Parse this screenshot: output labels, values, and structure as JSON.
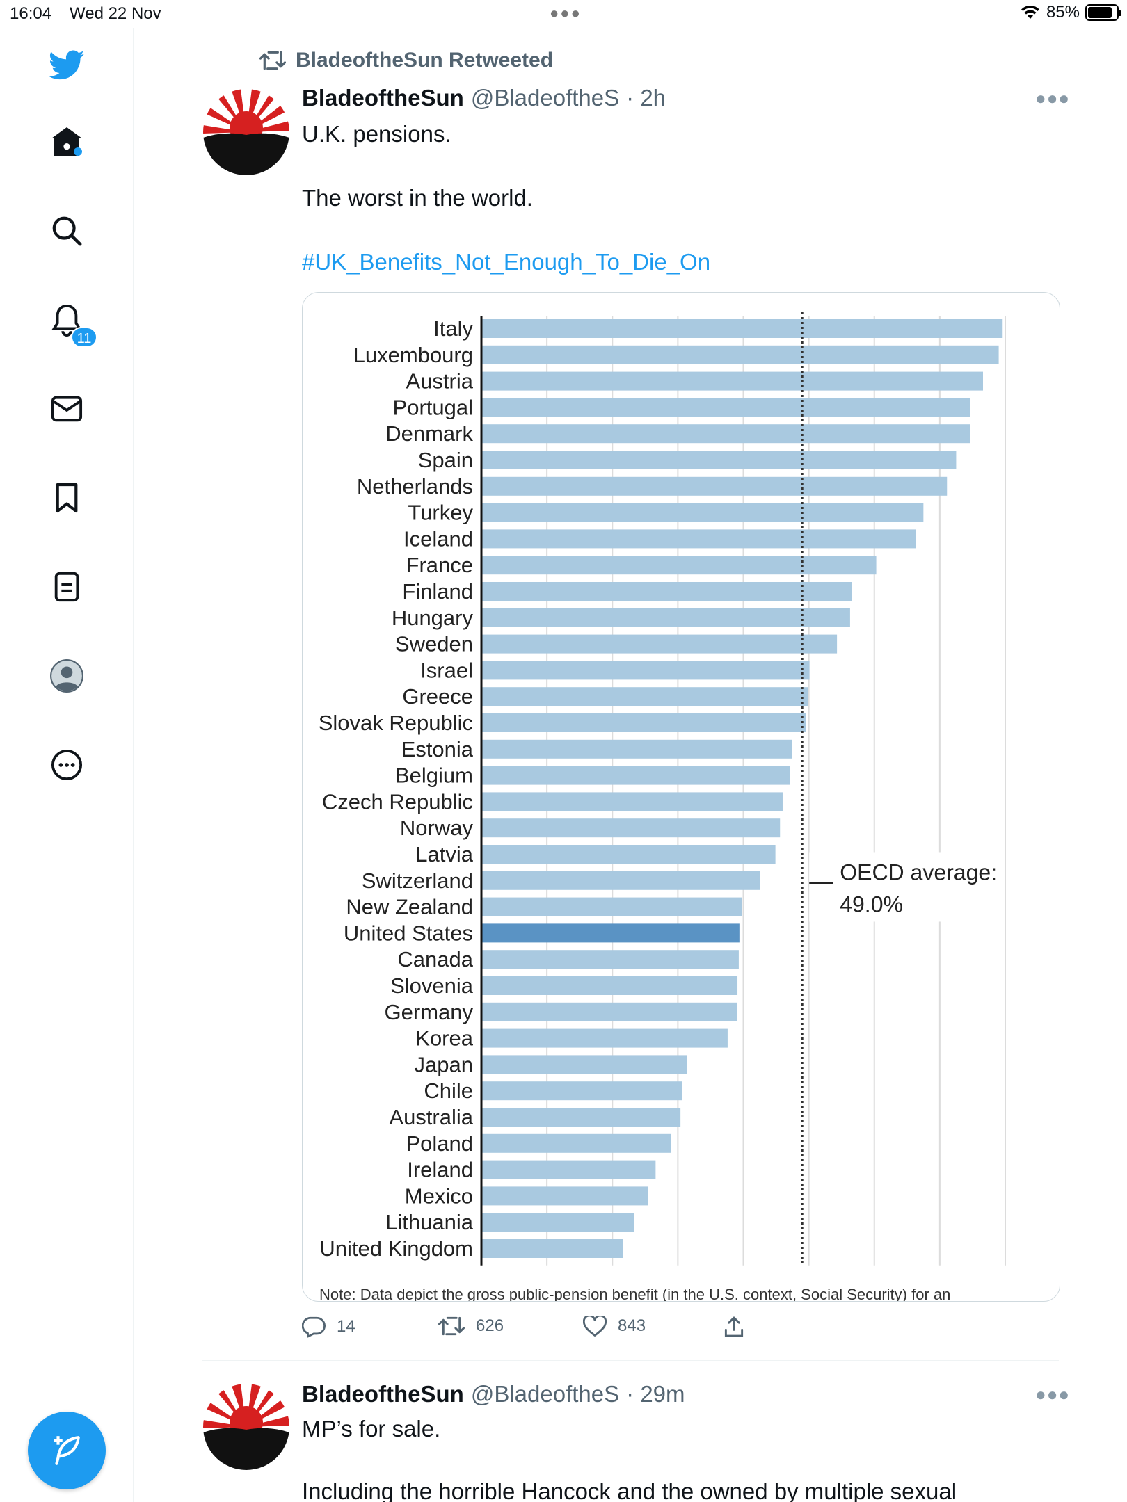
{
  "status": {
    "time": "16:04",
    "date": "Wed 22 Nov",
    "battery": "85%",
    "battery_level": 0.85
  },
  "sidebar": {
    "items": [
      {
        "icon": "twitter-bird-icon"
      },
      {
        "icon": "home-icon"
      },
      {
        "icon": "search-icon"
      },
      {
        "icon": "bell-icon",
        "badge": "11"
      },
      {
        "icon": "mail-icon"
      },
      {
        "icon": "bookmark-icon"
      },
      {
        "icon": "list-icon"
      },
      {
        "icon": "profile-icon"
      },
      {
        "icon": "more-circle-icon"
      }
    ],
    "compose_icon": "compose-feather-icon"
  },
  "tweet1": {
    "retweeted_by": "BladeoftheSun Retweeted",
    "name": "BladeoftheSun",
    "handle": "@BladeoftheS",
    "time": "· 2h",
    "line1": "U.K. pensions.",
    "line2": "The worst in the world.",
    "hashtag": "#UK_Benefits_Not_Enough_To_Die_On",
    "note": "Note: Data depict the gross public-pension benefit (in the U.S. context, Social Security) for an",
    "replies": "14",
    "retweets": "626",
    "likes": "843"
  },
  "tweet2": {
    "name": "BladeoftheSun",
    "handle": "@BladeoftheS",
    "time": "· 29m",
    "line1": "MP’s for sale.",
    "line2": "Including the horrible Hancock and the owned by multiple sexual"
  },
  "chart_data": {
    "type": "bar",
    "orientation": "horizontal",
    "categories": [
      "Italy",
      "Luxembourg",
      "Austria",
      "Portugal",
      "Denmark",
      "Spain",
      "Netherlands",
      "Turkey",
      "Iceland",
      "France",
      "Finland",
      "Hungary",
      "Sweden",
      "Israel",
      "Greece",
      "Slovak Republic",
      "Estonia",
      "Belgium",
      "Czech Republic",
      "Norway",
      "Latvia",
      "Switzerland",
      "New Zealand",
      "United States",
      "Canada",
      "Slovenia",
      "Germany",
      "Korea",
      "Japan",
      "Chile",
      "Australia",
      "Poland",
      "Ireland",
      "Mexico",
      "Lithuania",
      "United Kingdom"
    ],
    "values": [
      79.6,
      79.0,
      76.6,
      74.6,
      74.6,
      72.5,
      71.1,
      67.5,
      66.3,
      60.3,
      56.6,
      56.3,
      54.3,
      50.1,
      49.9,
      49.6,
      47.4,
      47.1,
      46.0,
      45.6,
      44.9,
      42.6,
      39.8,
      39.4,
      39.3,
      39.1,
      39.0,
      37.6,
      31.4,
      30.6,
      30.4,
      29.0,
      26.6,
      25.4,
      23.3,
      21.6
    ],
    "highlight": "United States",
    "reference_line": {
      "label_line1": "OECD average:",
      "label_line2": "49.0%",
      "value": 49.0
    },
    "xlim": [
      0,
      80
    ],
    "grid": true,
    "colors": {
      "bar": "#a9c9e0",
      "highlight": "#5a93c4",
      "grid": "#dcdcdc",
      "avg_line": "#333333"
    }
  }
}
